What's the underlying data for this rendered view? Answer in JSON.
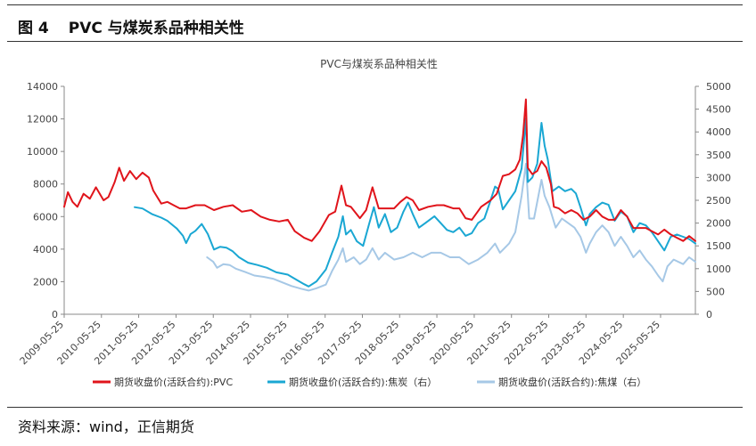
{
  "figure": {
    "number": "图 4",
    "title": "PVC 与煤炭系品种相关性"
  },
  "source": "资料来源：wind，正信期货",
  "chart_data": {
    "type": "line",
    "title": "PVC与煤炭系品种相关性",
    "x_ticks": [
      "2009-05-25",
      "2010-05-25",
      "2011-05-25",
      "2012-05-25",
      "2013-05-25",
      "2014-05-25",
      "2015-05-25",
      "2016-05-25",
      "2017-05-25",
      "2018-05-25",
      "2019-05-25",
      "2020-05-25",
      "2021-05-25",
      "2022-05-25",
      "2023-05-25",
      "2024-05-25",
      "2025-05-25"
    ],
    "y_left": {
      "ticks": [
        0,
        2000,
        4000,
        6000,
        8000,
        10000,
        12000,
        14000
      ],
      "ylim": [
        0,
        14000
      ]
    },
    "y_right": {
      "ticks": [
        0,
        500,
        1000,
        1500,
        2000,
        2500,
        3000,
        3500,
        4000,
        4500,
        5000
      ],
      "ylim": [
        0,
        5000
      ]
    },
    "xlim": [
      "2009-05-25",
      "2026-05-01"
    ],
    "grid": false,
    "legend_position": "bottom",
    "series": [
      {
        "name": "期货收盘价(活跃合约):PVC",
        "axis": "left",
        "color": "#e0141b",
        "points": [
          [
            "2009-05-25",
            6600
          ],
          [
            "2009-07-01",
            7500
          ],
          [
            "2009-08-15",
            6900
          ],
          [
            "2009-10-01",
            6600
          ],
          [
            "2009-12-01",
            7400
          ],
          [
            "2010-02-01",
            7100
          ],
          [
            "2010-04-01",
            7800
          ],
          [
            "2010-06-15",
            7000
          ],
          [
            "2010-08-01",
            7200
          ],
          [
            "2010-10-01",
            8100
          ],
          [
            "2010-11-15",
            9000
          ],
          [
            "2011-01-01",
            8200
          ],
          [
            "2011-03-01",
            8800
          ],
          [
            "2011-05-01",
            8300
          ],
          [
            "2011-07-01",
            8700
          ],
          [
            "2011-09-01",
            8400
          ],
          [
            "2011-10-15",
            7600
          ],
          [
            "2012-01-01",
            6800
          ],
          [
            "2012-03-01",
            6900
          ],
          [
            "2012-05-01",
            6700
          ],
          [
            "2012-07-01",
            6500
          ],
          [
            "2012-09-01",
            6500
          ],
          [
            "2012-12-01",
            6700
          ],
          [
            "2013-03-01",
            6700
          ],
          [
            "2013-06-01",
            6400
          ],
          [
            "2013-09-01",
            6600
          ],
          [
            "2013-12-01",
            6700
          ],
          [
            "2014-03-01",
            6300
          ],
          [
            "2014-06-01",
            6400
          ],
          [
            "2014-09-01",
            6000
          ],
          [
            "2014-12-01",
            5800
          ],
          [
            "2015-03-01",
            5700
          ],
          [
            "2015-05-25",
            5800
          ],
          [
            "2015-08-01",
            5100
          ],
          [
            "2015-11-01",
            4700
          ],
          [
            "2016-01-15",
            4500
          ],
          [
            "2016-04-01",
            5100
          ],
          [
            "2016-07-01",
            6100
          ],
          [
            "2016-09-01",
            6300
          ],
          [
            "2016-11-01",
            7900
          ],
          [
            "2016-12-15",
            6700
          ],
          [
            "2017-02-01",
            6600
          ],
          [
            "2017-05-01",
            5900
          ],
          [
            "2017-07-01",
            6400
          ],
          [
            "2017-09-01",
            7800
          ],
          [
            "2017-11-01",
            6500
          ],
          [
            "2018-01-01",
            6500
          ],
          [
            "2018-04-01",
            6500
          ],
          [
            "2018-06-01",
            6900
          ],
          [
            "2018-08-01",
            7200
          ],
          [
            "2018-10-01",
            7000
          ],
          [
            "2018-12-01",
            6400
          ],
          [
            "2019-03-01",
            6600
          ],
          [
            "2019-05-25",
            6700
          ],
          [
            "2019-08-01",
            6700
          ],
          [
            "2019-11-01",
            6500
          ],
          [
            "2020-01-01",
            6500
          ],
          [
            "2020-03-01",
            5900
          ],
          [
            "2020-05-01",
            5800
          ],
          [
            "2020-08-01",
            6600
          ],
          [
            "2020-11-01",
            7000
          ],
          [
            "2021-01-01",
            7400
          ],
          [
            "2021-03-01",
            8500
          ],
          [
            "2021-05-01",
            8600
          ],
          [
            "2021-07-01",
            8900
          ],
          [
            "2021-08-15",
            9500
          ],
          [
            "2021-09-15",
            11000
          ],
          [
            "2021-10-13",
            13200
          ],
          [
            "2021-11-01",
            9000
          ],
          [
            "2021-12-15",
            8600
          ],
          [
            "2022-02-01",
            8800
          ],
          [
            "2022-03-15",
            9400
          ],
          [
            "2022-05-01",
            9000
          ],
          [
            "2022-06-15",
            8000
          ],
          [
            "2022-07-15",
            6600
          ],
          [
            "2022-09-01",
            6500
          ],
          [
            "2022-11-01",
            6200
          ],
          [
            "2023-01-01",
            6400
          ],
          [
            "2023-03-01",
            6200
          ],
          [
            "2023-05-01",
            5800
          ],
          [
            "2023-07-01",
            6000
          ],
          [
            "2023-09-01",
            6400
          ],
          [
            "2023-11-01",
            6000
          ],
          [
            "2024-01-01",
            5800
          ],
          [
            "2024-03-01",
            5800
          ],
          [
            "2024-05-01",
            6400
          ],
          [
            "2024-07-01",
            6000
          ],
          [
            "2024-09-01",
            5300
          ],
          [
            "2024-11-01",
            5300
          ],
          [
            "2025-01-01",
            5300
          ],
          [
            "2025-03-01",
            5100
          ],
          [
            "2025-05-01",
            4900
          ],
          [
            "2025-07-01",
            5200
          ],
          [
            "2025-09-01",
            4900
          ],
          [
            "2025-11-01",
            4700
          ],
          [
            "2026-01-01",
            4500
          ],
          [
            "2026-03-01",
            4800
          ],
          [
            "2026-05-01",
            4500
          ]
        ]
      },
      {
        "name": "期货收盘价(活跃合约):焦炭（右）",
        "axis": "right",
        "color": "#1aa7d3",
        "points": [
          [
            "2011-04-15",
            2350
          ],
          [
            "2011-07-01",
            2320
          ],
          [
            "2011-10-01",
            2200
          ],
          [
            "2012-01-01",
            2120
          ],
          [
            "2012-03-01",
            2050
          ],
          [
            "2012-06-01",
            1880
          ],
          [
            "2012-08-01",
            1720
          ],
          [
            "2012-09-01",
            1560
          ],
          [
            "2012-10-15",
            1760
          ],
          [
            "2012-12-01",
            1830
          ],
          [
            "2013-02-01",
            1980
          ],
          [
            "2013-04-01",
            1760
          ],
          [
            "2013-06-01",
            1420
          ],
          [
            "2013-08-01",
            1480
          ],
          [
            "2013-10-01",
            1460
          ],
          [
            "2013-12-01",
            1380
          ],
          [
            "2014-02-01",
            1250
          ],
          [
            "2014-05-01",
            1130
          ],
          [
            "2014-08-01",
            1080
          ],
          [
            "2014-11-01",
            1020
          ],
          [
            "2015-02-01",
            920
          ],
          [
            "2015-05-25",
            870
          ],
          [
            "2015-08-01",
            780
          ],
          [
            "2015-11-01",
            660
          ],
          [
            "2015-12-15",
            610
          ],
          [
            "2016-03-01",
            720
          ],
          [
            "2016-06-01",
            980
          ],
          [
            "2016-08-01",
            1350
          ],
          [
            "2016-10-01",
            1700
          ],
          [
            "2016-11-15",
            2150
          ],
          [
            "2016-12-15",
            1750
          ],
          [
            "2017-02-01",
            1850
          ],
          [
            "2017-04-01",
            1600
          ],
          [
            "2017-06-01",
            1500
          ],
          [
            "2017-08-01",
            2000
          ],
          [
            "2017-09-15",
            2350
          ],
          [
            "2017-11-01",
            1900
          ],
          [
            "2018-01-01",
            2200
          ],
          [
            "2018-03-01",
            1800
          ],
          [
            "2018-05-01",
            1900
          ],
          [
            "2018-07-01",
            2250
          ],
          [
            "2018-08-15",
            2450
          ],
          [
            "2018-10-01",
            2200
          ],
          [
            "2018-12-01",
            1900
          ],
          [
            "2019-02-01",
            2000
          ],
          [
            "2019-05-01",
            2150
          ],
          [
            "2019-07-01",
            2000
          ],
          [
            "2019-09-01",
            1850
          ],
          [
            "2019-11-01",
            1800
          ],
          [
            "2020-01-01",
            1900
          ],
          [
            "2020-03-01",
            1720
          ],
          [
            "2020-05-01",
            1780
          ],
          [
            "2020-07-01",
            2000
          ],
          [
            "2020-09-01",
            2100
          ],
          [
            "2020-11-01",
            2500
          ],
          [
            "2020-12-15",
            2800
          ],
          [
            "2021-01-15",
            2750
          ],
          [
            "2021-03-01",
            2300
          ],
          [
            "2021-05-01",
            2500
          ],
          [
            "2021-07-01",
            2700
          ],
          [
            "2021-09-01",
            3200
          ],
          [
            "2021-10-13",
            4300
          ],
          [
            "2021-11-01",
            2900
          ],
          [
            "2021-12-15",
            3000
          ],
          [
            "2022-02-01",
            3300
          ],
          [
            "2022-03-15",
            4200
          ],
          [
            "2022-04-15",
            3700
          ],
          [
            "2022-05-15",
            3400
          ],
          [
            "2022-07-01",
            2700
          ],
          [
            "2022-09-01",
            2800
          ],
          [
            "2022-11-01",
            2700
          ],
          [
            "2023-01-01",
            2750
          ],
          [
            "2023-02-15",
            2650
          ],
          [
            "2023-04-01",
            2350
          ],
          [
            "2023-05-25",
            1950
          ],
          [
            "2023-07-01",
            2200
          ],
          [
            "2023-09-01",
            2350
          ],
          [
            "2023-11-01",
            2450
          ],
          [
            "2024-01-01",
            2400
          ],
          [
            "2024-03-01",
            2050
          ],
          [
            "2024-05-01",
            2250
          ],
          [
            "2024-07-01",
            2150
          ],
          [
            "2024-09-01",
            1800
          ],
          [
            "2024-11-01",
            2000
          ],
          [
            "2025-01-01",
            1950
          ],
          [
            "2025-03-01",
            1800
          ],
          [
            "2025-05-01",
            1600
          ],
          [
            "2025-07-01",
            1400
          ],
          [
            "2025-09-01",
            1700
          ],
          [
            "2025-11-01",
            1750
          ],
          [
            "2026-01-01",
            1700
          ],
          [
            "2026-03-01",
            1650
          ],
          [
            "2026-05-01",
            1550
          ]
        ]
      },
      {
        "name": "期货收盘价(活跃合约):焦煤（右）",
        "axis": "right",
        "color": "#a6c8e6",
        "points": [
          [
            "2013-03-25",
            1250
          ],
          [
            "2013-05-25",
            1150
          ],
          [
            "2013-07-01",
            1020
          ],
          [
            "2013-09-01",
            1100
          ],
          [
            "2013-11-01",
            1080
          ],
          [
            "2014-01-01",
            1000
          ],
          [
            "2014-04-01",
            930
          ],
          [
            "2014-07-01",
            850
          ],
          [
            "2014-10-01",
            820
          ],
          [
            "2015-01-01",
            780
          ],
          [
            "2015-04-01",
            700
          ],
          [
            "2015-07-01",
            620
          ],
          [
            "2015-10-01",
            560
          ],
          [
            "2015-12-15",
            520
          ],
          [
            "2016-03-01",
            570
          ],
          [
            "2016-06-01",
            650
          ],
          [
            "2016-08-01",
            950
          ],
          [
            "2016-10-01",
            1200
          ],
          [
            "2016-11-15",
            1450
          ],
          [
            "2016-12-15",
            1150
          ],
          [
            "2017-03-01",
            1250
          ],
          [
            "2017-05-01",
            1100
          ],
          [
            "2017-07-01",
            1200
          ],
          [
            "2017-09-01",
            1450
          ],
          [
            "2017-11-01",
            1200
          ],
          [
            "2018-01-01",
            1350
          ],
          [
            "2018-04-01",
            1200
          ],
          [
            "2018-07-01",
            1250
          ],
          [
            "2018-10-01",
            1350
          ],
          [
            "2019-01-01",
            1250
          ],
          [
            "2019-04-01",
            1350
          ],
          [
            "2019-07-01",
            1350
          ],
          [
            "2019-10-01",
            1250
          ],
          [
            "2020-01-01",
            1250
          ],
          [
            "2020-04-01",
            1100
          ],
          [
            "2020-07-01",
            1200
          ],
          [
            "2020-10-01",
            1350
          ],
          [
            "2020-12-15",
            1550
          ],
          [
            "2021-02-01",
            1350
          ],
          [
            "2021-05-01",
            1550
          ],
          [
            "2021-07-01",
            1800
          ],
          [
            "2021-09-01",
            2600
          ],
          [
            "2021-10-13",
            3300
          ],
          [
            "2021-11-15",
            2100
          ],
          [
            "2022-01-01",
            2100
          ],
          [
            "2022-03-15",
            2950
          ],
          [
            "2022-04-15",
            2600
          ],
          [
            "2022-06-01",
            2350
          ],
          [
            "2022-08-01",
            1900
          ],
          [
            "2022-10-01",
            2100
          ],
          [
            "2022-12-01",
            2000
          ],
          [
            "2023-02-01",
            1900
          ],
          [
            "2023-04-01",
            1700
          ],
          [
            "2023-05-25",
            1350
          ],
          [
            "2023-07-01",
            1550
          ],
          [
            "2023-09-01",
            1800
          ],
          [
            "2023-11-01",
            1950
          ],
          [
            "2024-01-01",
            1800
          ],
          [
            "2024-03-01",
            1500
          ],
          [
            "2024-05-01",
            1700
          ],
          [
            "2024-07-01",
            1500
          ],
          [
            "2024-09-01",
            1250
          ],
          [
            "2024-11-01",
            1400
          ],
          [
            "2025-01-01",
            1200
          ],
          [
            "2025-03-01",
            1050
          ],
          [
            "2025-05-01",
            850
          ],
          [
            "2025-06-15",
            720
          ],
          [
            "2025-08-01",
            1050
          ],
          [
            "2025-10-01",
            1200
          ],
          [
            "2026-01-01",
            1100
          ],
          [
            "2026-03-01",
            1250
          ],
          [
            "2026-05-01",
            1150
          ]
        ]
      }
    ]
  }
}
